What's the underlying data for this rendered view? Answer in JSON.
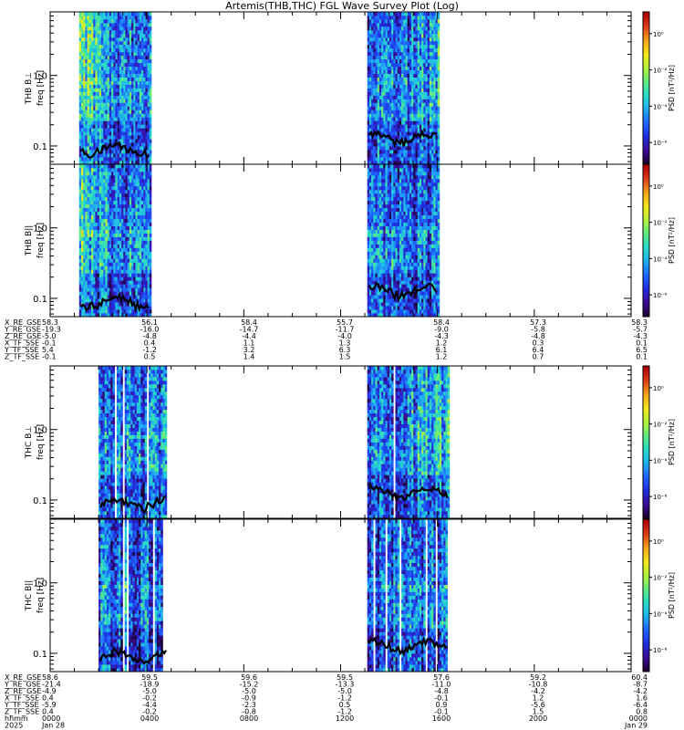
{
  "title": "Artemis(THB,THC) FGL Wave Survey Plot (Log)",
  "colors": {
    "colormap": [
      "#1a0033",
      "#3b0c9a",
      "#1e2fe0",
      "#1f66ff",
      "#1fb0f0",
      "#27dcc8",
      "#5eea80",
      "#b4f23c",
      "#f5e81e",
      "#f5a81a",
      "#e0401a",
      "#b00000"
    ],
    "frame": "#000000",
    "trace": "#000000"
  },
  "chart_data": [
    {
      "type": "heatmap",
      "ylabel_probe": "THB",
      "ylabel_comp": "B⊥",
      "ylabel_unit": "freq [Hz]",
      "yscale": "log",
      "ylim": [
        0.055,
        8.0
      ],
      "yticks": [
        "1.0",
        "0.1"
      ],
      "yticks_val": [
        1.0,
        0.1
      ],
      "colorbar_label": "PSD [nT²/Hz]",
      "colorbar_ticks": [
        "10⁰",
        "10⁻²",
        "10⁻⁴",
        "10⁻⁶"
      ],
      "colorbar_vals": [
        0,
        -2,
        -4,
        -6
      ],
      "colorbar_range": [
        -7.2,
        1.2
      ],
      "xlim_hours": [
        0,
        24
      ],
      "data_segments": [
        [
          1.2,
          4.2
        ],
        [
          13.1,
          16.1
        ]
      ],
      "trace_level_hz": [
        0.09,
        0.13
      ],
      "intensity": "high-early"
    },
    {
      "type": "heatmap",
      "ylabel_probe": "THB",
      "ylabel_comp": "B||",
      "ylabel_unit": "freq [Hz]",
      "yscale": "log",
      "ylim": [
        0.055,
        8.0
      ],
      "yticks": [
        "1.0",
        "0.1"
      ],
      "yticks_val": [
        1.0,
        0.1
      ],
      "colorbar_label": "PSD [nT²/Hz]",
      "colorbar_ticks": [
        "10⁰",
        "10⁻²",
        "10⁻⁴",
        "10⁻⁶"
      ],
      "colorbar_vals": [
        0,
        -2,
        -4,
        -6
      ],
      "colorbar_range": [
        -7.2,
        1.2
      ],
      "xlim_hours": [
        0,
        24
      ],
      "data_segments": [
        [
          1.2,
          4.2
        ],
        [
          13.1,
          16.1
        ]
      ],
      "trace_level_hz": [
        0.09,
        0.13
      ],
      "intensity": "mid"
    },
    {
      "type": "heatmap",
      "ylabel_probe": "THC",
      "ylabel_comp": "B⊥",
      "ylabel_unit": "freq [Hz]",
      "yscale": "log",
      "ylim": [
        0.055,
        8.0
      ],
      "yticks": [
        "1.0",
        "0.1"
      ],
      "yticks_val": [
        1.0,
        0.1
      ],
      "colorbar_label": "PSD [nT²/Hz]",
      "colorbar_ticks": [
        "10⁰",
        "10⁻²",
        "10⁻⁴",
        "10⁻⁶"
      ],
      "colorbar_vals": [
        0,
        -2,
        -4,
        -6
      ],
      "colorbar_range": [
        -7.2,
        1.2
      ],
      "xlim_hours": [
        0,
        24
      ],
      "data_segments": [
        [
          2.0,
          4.9
        ],
        [
          13.1,
          16.5
        ]
      ],
      "trace_level_hz": [
        0.09,
        0.13
      ],
      "intensity": "mid-late"
    },
    {
      "type": "heatmap",
      "ylabel_probe": "THC",
      "ylabel_comp": "B||",
      "ylabel_unit": "freq [Hz]",
      "yscale": "log",
      "ylim": [
        0.055,
        8.0
      ],
      "yticks": [
        "1.0",
        "0.1"
      ],
      "yticks_val": [
        1.0,
        0.1
      ],
      "colorbar_label": "PSD [nT²/Hz]",
      "colorbar_ticks": [
        "10⁰",
        "10⁻²",
        "10⁻⁴",
        "10⁻⁶"
      ],
      "colorbar_vals": [
        0,
        -2,
        -4,
        -6
      ],
      "colorbar_range": [
        -7.2,
        1.2
      ],
      "xlim_hours": [
        0,
        24
      ],
      "data_segments": [
        [
          2.0,
          4.9
        ],
        [
          13.1,
          16.5
        ]
      ],
      "trace_level_hz": [
        0.09,
        0.13
      ],
      "intensity": "mid"
    }
  ],
  "ephem_b": {
    "rows": [
      {
        "label": "X_RE_GSE",
        "values": [
          "58.3",
          "56.1",
          "58.4",
          "55.7",
          "58.4",
          "57.3",
          "58.3"
        ]
      },
      {
        "label": "Y_RE_GSE",
        "values": [
          "-19.3",
          "-16.0",
          "-14.7",
          "-11.7",
          "-9.0",
          "-5.8",
          "-5.7"
        ]
      },
      {
        "label": "Z_RE_GSE",
        "values": [
          "-5.0",
          "-4.8",
          "-4.4",
          "-4.0",
          "-4.3",
          "-4.8",
          "-4.3"
        ]
      },
      {
        "label": "X_TF_SSE",
        "values": [
          "-0.1",
          "0.4",
          "1.1",
          "1.3",
          "1.2",
          "0.3",
          "0.1"
        ]
      },
      {
        "label": "Y_TF_SSE",
        "values": [
          "5.4",
          "-1.2",
          "3.2",
          "6.3",
          "6.1",
          "6.4",
          "6.5"
        ]
      },
      {
        "label": "Z_TF_SSE",
        "values": [
          "-0.1",
          "0.5",
          "1.4",
          "1.5",
          "1.2",
          "0.7",
          "0.1"
        ]
      }
    ]
  },
  "ephem_c": {
    "rows": [
      {
        "label": "X_RE_GSE",
        "values": [
          "58.6",
          "59.5",
          "59.6",
          "59.5",
          "57.6",
          "59.2",
          "60.4"
        ]
      },
      {
        "label": "Y_RE_GSE",
        "values": [
          "-21.4",
          "-18.9",
          "-15.2",
          "-13.3",
          "-11.0",
          "-10.8",
          "-8.7"
        ]
      },
      {
        "label": "Z_RE_GSE",
        "values": [
          "-4.9",
          "-5.0",
          "-5.0",
          "-5.0",
          "-4.8",
          "-4.2",
          "-4.2"
        ]
      },
      {
        "label": "X_TF_SSE",
        "values": [
          "0.4",
          "-0.2",
          "-0.9",
          "-1.2",
          "-0.1",
          "1.2",
          "1.6"
        ]
      },
      {
        "label": "Y_TF_SSE",
        "values": [
          "-5.9",
          "-4.4",
          "-2.3",
          "0.5",
          "0.9",
          "-5.6",
          "-6.4"
        ]
      },
      {
        "label": "Z_TF_SSE",
        "values": [
          "0.4",
          "-0.2",
          "-0.8",
          "-1.2",
          "-0.1",
          "1.5",
          "0.8"
        ]
      },
      {
        "label": "hhmm",
        "values": [
          "0000",
          "0400",
          "0800",
          "1200",
          "1600",
          "2000",
          "0000"
        ]
      },
      {
        "label": "2025",
        "values": [
          "Jan 28",
          "",
          "",
          "",
          "",
          "",
          "Jan 29"
        ]
      }
    ]
  }
}
